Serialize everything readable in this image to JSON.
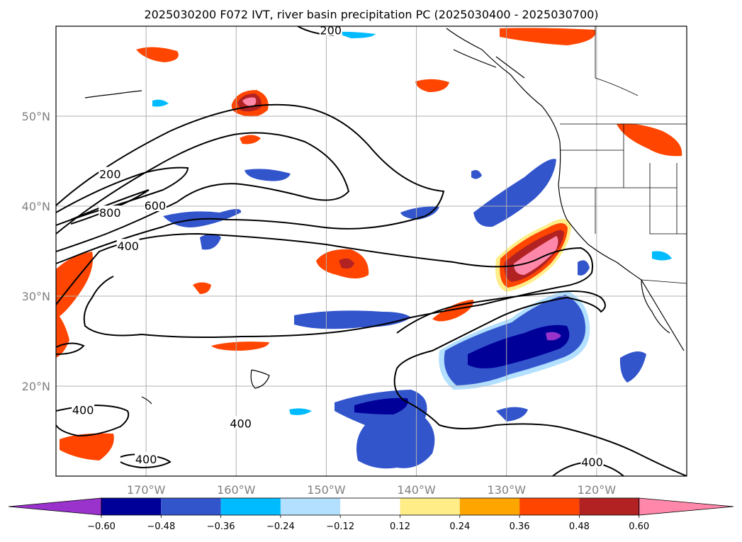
{
  "chart_data": {
    "type": "map",
    "title": "2025030200 F072 IVT, river basin precipitation PC (2025030400 - 2025030700)",
    "lon_range": [
      -180,
      -110
    ],
    "lat_range": [
      10,
      60
    ],
    "lat_ticks": [
      {
        "value": 20,
        "label": "20°N"
      },
      {
        "value": 30,
        "label": "30°N"
      },
      {
        "value": 40,
        "label": "40°N"
      },
      {
        "value": 50,
        "label": "50°N"
      }
    ],
    "lon_ticks": [
      {
        "value": -170,
        "label": "170°W"
      },
      {
        "value": -160,
        "label": "160°W"
      },
      {
        "value": -150,
        "label": "150°W"
      },
      {
        "value": -140,
        "label": "140°W"
      },
      {
        "value": -130,
        "label": "130°W"
      },
      {
        "value": -120,
        "label": "120°W"
      }
    ],
    "grid": true,
    "ivt_contour_labels": [
      {
        "text": "200",
        "lon": -174,
        "lat": 43.5
      },
      {
        "text": "800",
        "lon": -174,
        "lat": 39.2
      },
      {
        "text": "600",
        "lon": -169,
        "lat": 40.0
      },
      {
        "text": "400",
        "lon": -172,
        "lat": 35.5
      },
      {
        "text": "200",
        "lon": -149.5,
        "lat": 59.5
      },
      {
        "text": "400",
        "lon": -177,
        "lat": 17.3
      },
      {
        "text": "400",
        "lon": -159.5,
        "lat": 15.8
      },
      {
        "text": "400",
        "lon": -170,
        "lat": 11.8
      },
      {
        "text": "400",
        "lon": -120.5,
        "lat": 11.5
      }
    ],
    "colorbar": {
      "ticks": [
        "−0.60",
        "−0.48",
        "−0.36",
        "−0.24",
        "−0.12",
        "0.12",
        "0.24",
        "0.36",
        "0.48",
        "0.60"
      ],
      "colors": [
        "#9933cc",
        "#000099",
        "#3355cc",
        "#00bbff",
        "#b3e0ff",
        "#ffffff",
        "#ffee88",
        "#ffa500",
        "#ff4500",
        "#b22222",
        "#ff88aa"
      ],
      "extend": "both"
    }
  }
}
